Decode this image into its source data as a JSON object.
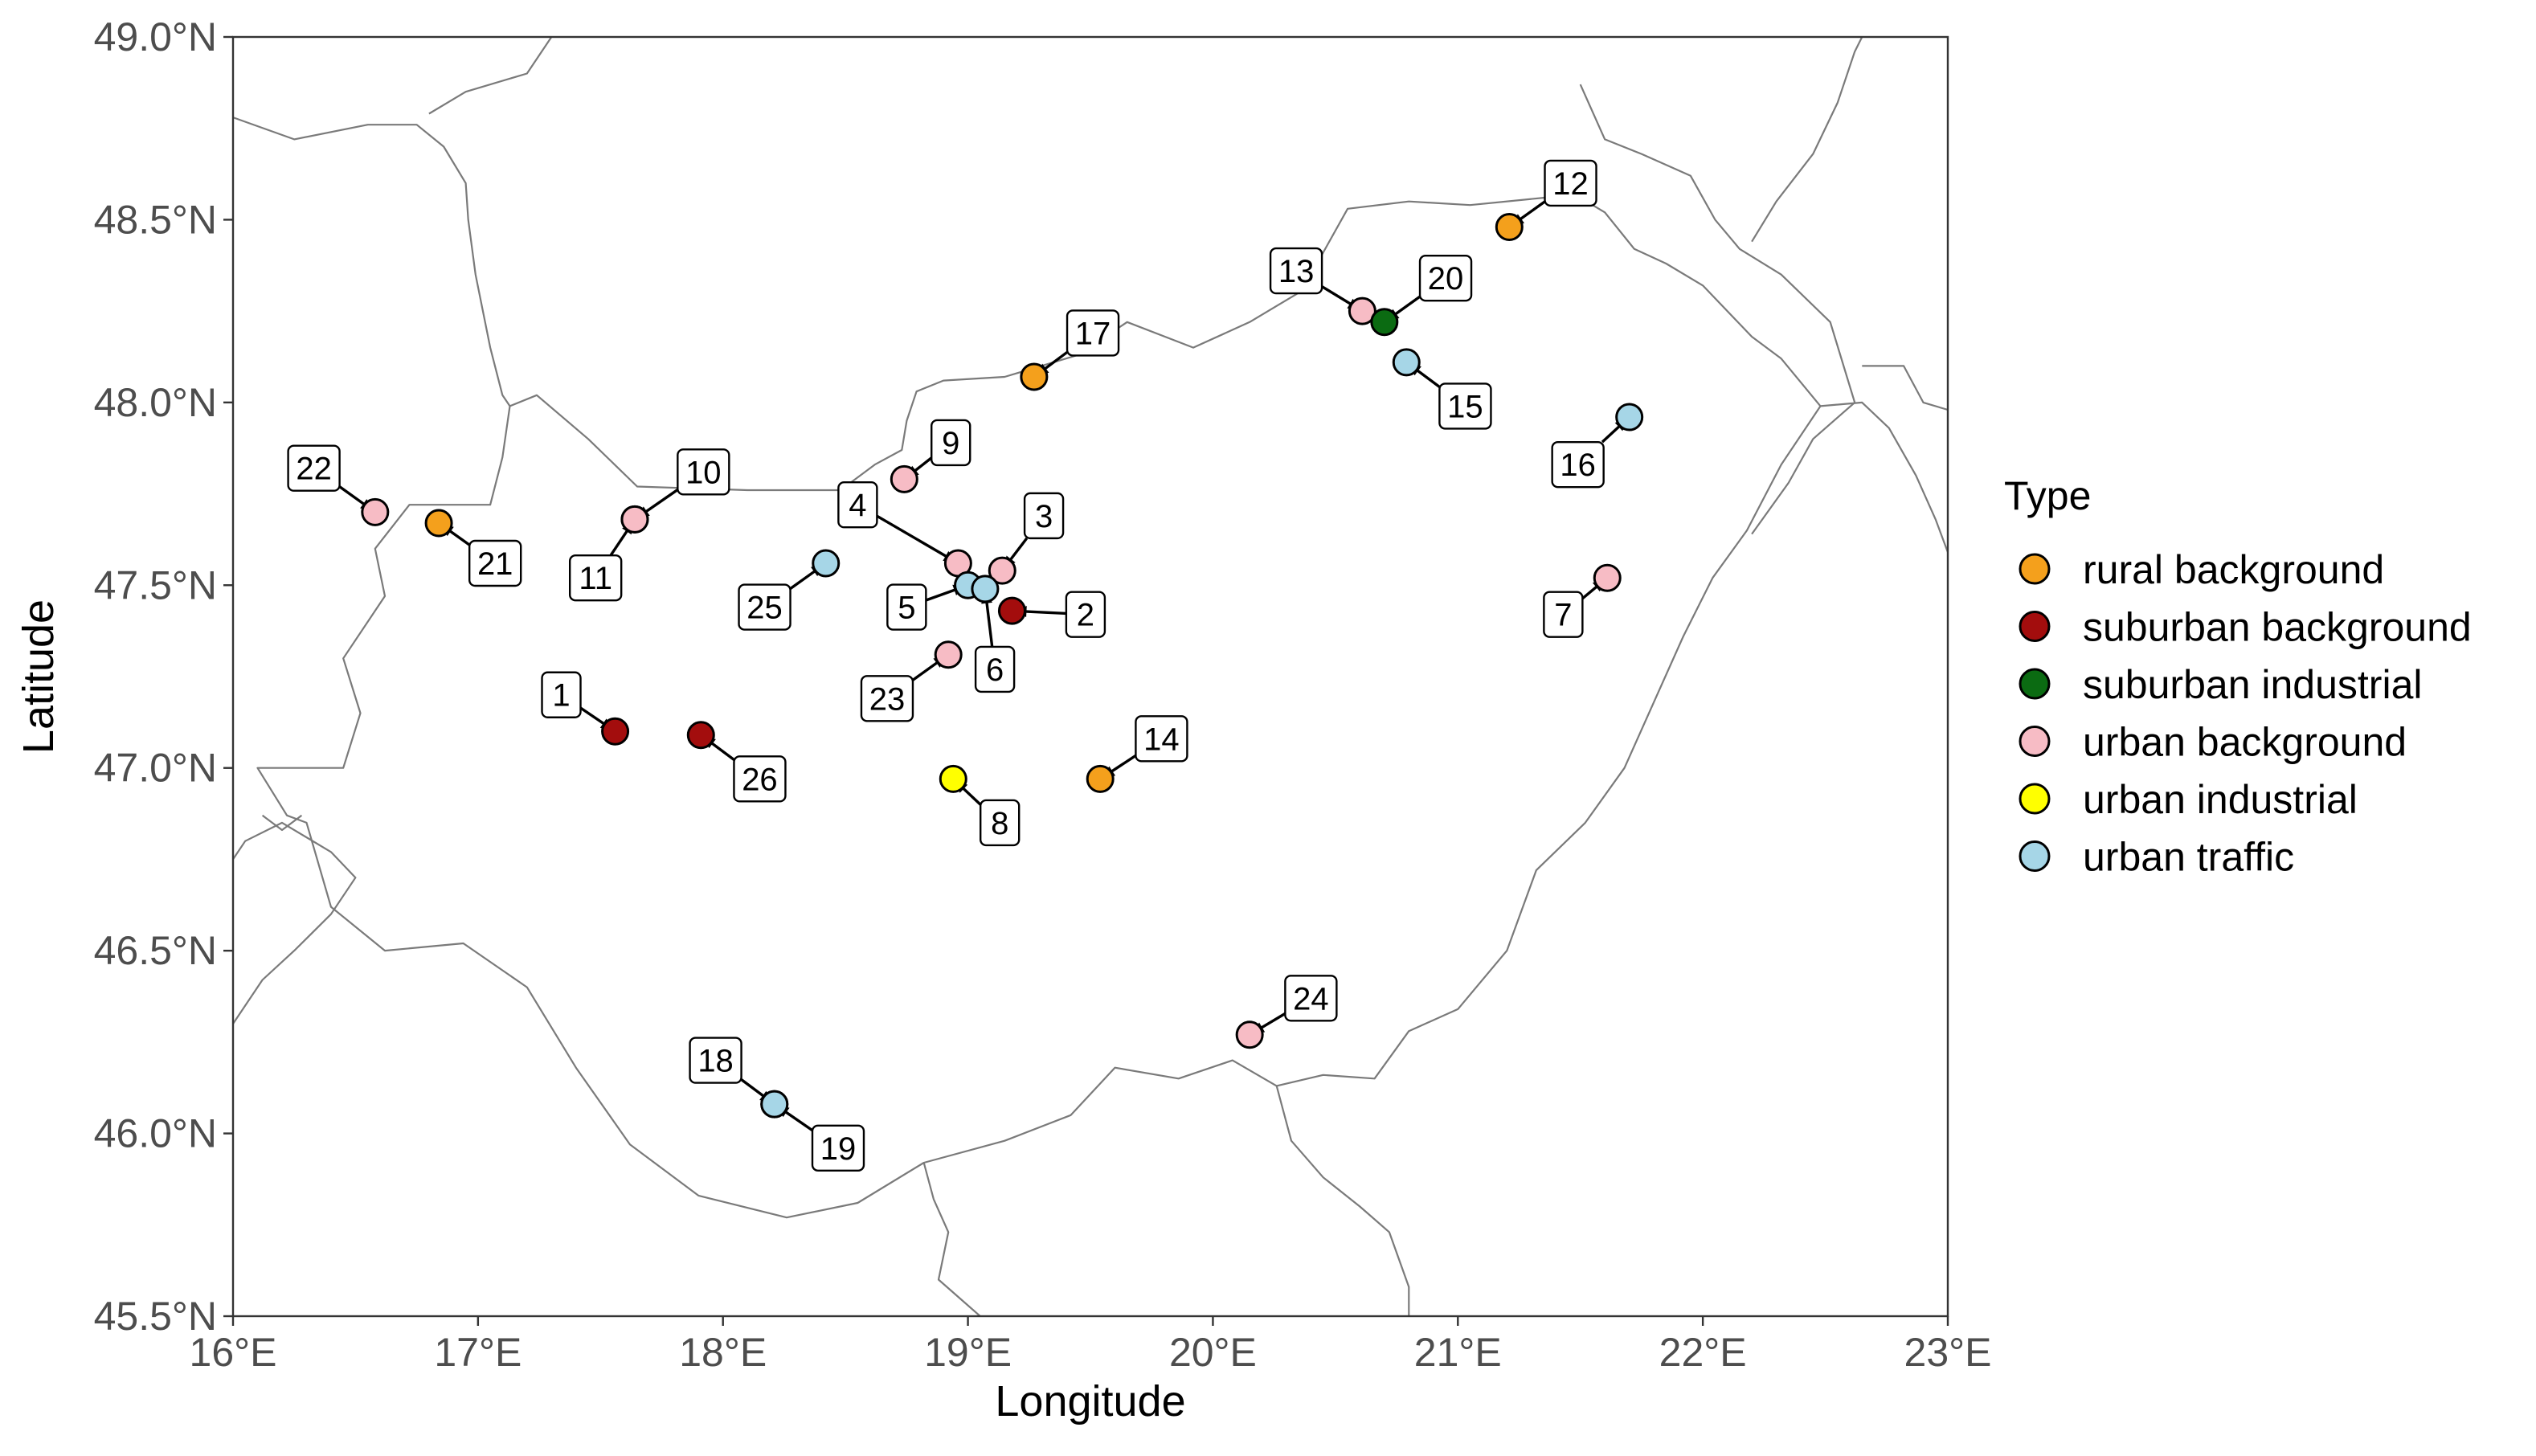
{
  "chart_data": {
    "type": "scatter",
    "xlabel": "Longitude",
    "ylabel": "Latitude",
    "xlim": [
      16,
      23
    ],
    "ylim": [
      45.5,
      49
    ],
    "x_ticks": [
      {
        "value": 16,
        "label": "16°E"
      },
      {
        "value": 17,
        "label": "17°E"
      },
      {
        "value": 18,
        "label": "18°E"
      },
      {
        "value": 19,
        "label": "19°E"
      },
      {
        "value": 20,
        "label": "20°E"
      },
      {
        "value": 21,
        "label": "21°E"
      },
      {
        "value": 22,
        "label": "22°E"
      },
      {
        "value": 23,
        "label": "23°E"
      }
    ],
    "y_ticks": [
      {
        "value": 45.5,
        "label": "45.5°N"
      },
      {
        "value": 46.0,
        "label": "46.0°N"
      },
      {
        "value": 46.5,
        "label": "46.5°N"
      },
      {
        "value": 47.0,
        "label": "47.0°N"
      },
      {
        "value": 47.5,
        "label": "47.5°N"
      },
      {
        "value": 48.0,
        "label": "48.0°N"
      },
      {
        "value": 48.5,
        "label": "48.5°N"
      },
      {
        "value": 49.0,
        "label": "49.0°N"
      }
    ],
    "legend_title": "Type",
    "legend_position": "right",
    "grid": false,
    "categories": [
      {
        "name": "rural background",
        "color": "#f4a01c"
      },
      {
        "name": "suburban background",
        "color": "#a30d0d"
      },
      {
        "name": "suburban industrial",
        "color": "#0b6b12"
      },
      {
        "name": "urban background",
        "color": "#f7bcc5"
      },
      {
        "name": "urban industrial",
        "color": "#ffff00"
      },
      {
        "name": "urban traffic",
        "color": "#a6d6e7"
      }
    ],
    "points": [
      {
        "id": "1",
        "lon": 17.56,
        "lat": 47.1,
        "type": "suburban background",
        "label_lon": 17.34,
        "label_lat": 47.2
      },
      {
        "id": "2",
        "lon": 19.18,
        "lat": 47.43,
        "type": "suburban background",
        "label_lon": 19.48,
        "label_lat": 47.42
      },
      {
        "id": "3",
        "lon": 19.14,
        "lat": 47.54,
        "type": "urban background",
        "label_lon": 19.31,
        "label_lat": 47.69
      },
      {
        "id": "4",
        "lon": 18.96,
        "lat": 47.56,
        "type": "urban background",
        "label_lon": 18.55,
        "label_lat": 47.72
      },
      {
        "id": "5",
        "lon": 19.0,
        "lat": 47.5,
        "type": "urban traffic",
        "label_lon": 18.75,
        "label_lat": 47.44
      },
      {
        "id": "6",
        "lon": 19.07,
        "lat": 47.49,
        "type": "urban traffic",
        "label_lon": 19.11,
        "label_lat": 47.27
      },
      {
        "id": "7",
        "lon": 21.61,
        "lat": 47.52,
        "type": "urban background",
        "label_lon": 21.43,
        "label_lat": 47.42
      },
      {
        "id": "8",
        "lon": 18.94,
        "lat": 46.97,
        "type": "urban industrial",
        "label_lon": 19.13,
        "label_lat": 46.85
      },
      {
        "id": "9",
        "lon": 18.74,
        "lat": 47.79,
        "type": "urban background",
        "label_lon": 18.93,
        "label_lat": 47.89
      },
      {
        "id": "10",
        "lon": 17.64,
        "lat": 47.68,
        "type": "urban background",
        "label_lon": 17.92,
        "label_lat": 47.81
      },
      {
        "id": "11",
        "lon": 17.64,
        "lat": 47.68,
        "type": "urban background",
        "label_lon": 17.48,
        "label_lat": 47.52
      },
      {
        "id": "12",
        "lon": 21.21,
        "lat": 48.48,
        "type": "rural background",
        "label_lon": 21.46,
        "label_lat": 48.6
      },
      {
        "id": "13",
        "lon": 20.61,
        "lat": 48.25,
        "type": "urban background",
        "label_lon": 20.34,
        "label_lat": 48.36
      },
      {
        "id": "14",
        "lon": 19.54,
        "lat": 46.97,
        "type": "rural background",
        "label_lon": 19.79,
        "label_lat": 47.08
      },
      {
        "id": "15",
        "lon": 20.79,
        "lat": 48.11,
        "type": "urban traffic",
        "label_lon": 21.03,
        "label_lat": 47.99
      },
      {
        "id": "16",
        "lon": 21.7,
        "lat": 47.96,
        "type": "urban traffic",
        "label_lon": 21.49,
        "label_lat": 47.83
      },
      {
        "id": "17",
        "lon": 19.27,
        "lat": 48.07,
        "type": "rural background",
        "label_lon": 19.51,
        "label_lat": 48.19
      },
      {
        "id": "18",
        "lon": 18.21,
        "lat": 46.08,
        "type": "urban traffic",
        "label_lon": 17.97,
        "label_lat": 46.2
      },
      {
        "id": "19",
        "lon": 18.21,
        "lat": 46.08,
        "type": "urban traffic",
        "label_lon": 18.47,
        "label_lat": 45.96
      },
      {
        "id": "20",
        "lon": 20.7,
        "lat": 48.22,
        "type": "suburban industrial",
        "label_lon": 20.95,
        "label_lat": 48.34
      },
      {
        "id": "21",
        "lon": 16.84,
        "lat": 47.67,
        "type": "rural background",
        "label_lon": 17.07,
        "label_lat": 47.56
      },
      {
        "id": "22",
        "lon": 16.58,
        "lat": 47.7,
        "type": "urban background",
        "label_lon": 16.33,
        "label_lat": 47.82
      },
      {
        "id": "23",
        "lon": 18.92,
        "lat": 47.31,
        "type": "urban background",
        "label_lon": 18.67,
        "label_lat": 47.19
      },
      {
        "id": "24",
        "lon": 20.15,
        "lat": 46.27,
        "type": "urban background",
        "label_lon": 20.4,
        "label_lat": 46.37
      },
      {
        "id": "25",
        "lon": 18.42,
        "lat": 47.56,
        "type": "urban traffic",
        "label_lon": 18.17,
        "label_lat": 47.44
      },
      {
        "id": "26",
        "lon": 17.91,
        "lat": 47.09,
        "type": "suburban background",
        "label_lon": 18.15,
        "label_lat": 46.97
      }
    ],
    "borders": [
      [
        [
          16.0,
          48.78
        ],
        [
          16.25,
          48.72
        ],
        [
          16.55,
          48.76
        ],
        [
          16.75,
          48.76
        ],
        [
          16.86,
          48.7
        ],
        [
          16.95,
          48.6
        ],
        [
          16.96,
          48.5
        ],
        [
          16.99,
          48.35
        ],
        [
          17.05,
          48.15
        ],
        [
          17.1,
          48.02
        ],
        [
          17.13,
          47.99
        ]
      ],
      [
        [
          17.13,
          47.99
        ],
        [
          17.24,
          48.02
        ],
        [
          17.45,
          47.9
        ],
        [
          17.65,
          47.77
        ],
        [
          18.1,
          47.76
        ],
        [
          18.48,
          47.76
        ],
        [
          18.62,
          47.83
        ],
        [
          18.73,
          47.87
        ],
        [
          18.75,
          47.95
        ],
        [
          18.79,
          48.03
        ],
        [
          18.9,
          48.06
        ],
        [
          19.15,
          48.07
        ],
        [
          19.45,
          48.13
        ],
        [
          19.65,
          48.22
        ],
        [
          19.92,
          48.15
        ],
        [
          20.15,
          48.22
        ],
        [
          20.35,
          48.3
        ],
        [
          20.45,
          48.41
        ],
        [
          20.55,
          48.53
        ],
        [
          20.8,
          48.55
        ],
        [
          21.05,
          48.54
        ],
        [
          21.35,
          48.56
        ],
        [
          21.45,
          48.58
        ],
        [
          21.6,
          48.52
        ],
        [
          21.72,
          48.42
        ],
        [
          21.85,
          48.38
        ],
        [
          22.0,
          48.32
        ],
        [
          22.1,
          48.25
        ],
        [
          22.2,
          48.18
        ],
        [
          22.32,
          48.12
        ],
        [
          22.48,
          47.99
        ],
        [
          22.65,
          48.0
        ],
        [
          22.76,
          47.93
        ],
        [
          22.87,
          47.8
        ],
        [
          22.95,
          47.68
        ],
        [
          23.0,
          47.59
        ]
      ],
      [
        [
          22.48,
          47.99
        ],
        [
          22.32,
          47.83
        ],
        [
          22.18,
          47.65
        ],
        [
          22.04,
          47.52
        ],
        [
          21.92,
          47.36
        ],
        [
          21.8,
          47.18
        ],
        [
          21.68,
          47.0
        ],
        [
          21.52,
          46.85
        ],
        [
          21.32,
          46.72
        ],
        [
          21.2,
          46.5
        ],
        [
          21.0,
          46.34
        ],
        [
          20.8,
          46.28
        ],
        [
          20.66,
          46.15
        ],
        [
          20.45,
          46.16
        ],
        [
          20.26,
          46.13
        ],
        [
          20.08,
          46.2
        ],
        [
          19.86,
          46.15
        ],
        [
          19.6,
          46.18
        ],
        [
          19.42,
          46.05
        ],
        [
          19.15,
          45.98
        ],
        [
          18.82,
          45.92
        ],
        [
          18.55,
          45.81
        ],
        [
          18.26,
          45.77
        ],
        [
          17.9,
          45.83
        ],
        [
          17.62,
          45.97
        ],
        [
          17.4,
          46.18
        ],
        [
          17.2,
          46.4
        ],
        [
          16.94,
          46.52
        ],
        [
          16.62,
          46.5
        ],
        [
          16.4,
          46.62
        ],
        [
          16.3,
          46.85
        ],
        [
          16.22,
          46.87
        ],
        [
          16.1,
          47.0
        ],
        [
          16.45,
          47.0
        ],
        [
          16.52,
          47.15
        ],
        [
          16.45,
          47.3
        ],
        [
          16.62,
          47.47
        ],
        [
          16.58,
          47.6
        ],
        [
          16.72,
          47.72
        ],
        [
          17.05,
          47.72
        ],
        [
          17.1,
          47.85
        ],
        [
          17.13,
          47.99
        ]
      ],
      [
        [
          16.12,
          46.87
        ],
        [
          16.2,
          46.83
        ],
        [
          16.28,
          46.87
        ]
      ],
      [
        [
          16.0,
          46.3
        ],
        [
          16.12,
          46.42
        ],
        [
          16.25,
          46.5
        ],
        [
          16.4,
          46.6
        ],
        [
          16.5,
          46.7
        ],
        [
          16.4,
          46.77
        ],
        [
          16.2,
          46.85
        ],
        [
          16.05,
          46.8
        ],
        [
          16.0,
          46.75
        ]
      ],
      [
        [
          18.82,
          45.92
        ],
        [
          18.86,
          45.82
        ],
        [
          18.92,
          45.73
        ],
        [
          18.88,
          45.6
        ],
        [
          19.05,
          45.5
        ]
      ],
      [
        [
          20.26,
          46.13
        ],
        [
          20.32,
          45.98
        ],
        [
          20.45,
          45.88
        ],
        [
          20.6,
          45.8
        ],
        [
          20.72,
          45.73
        ],
        [
          20.8,
          45.58
        ],
        [
          20.8,
          45.5
        ]
      ],
      [
        [
          17.3,
          49.0
        ],
        [
          17.2,
          48.9
        ],
        [
          16.95,
          48.85
        ],
        [
          16.8,
          48.79
        ]
      ],
      [
        [
          21.5,
          48.87
        ],
        [
          21.6,
          48.72
        ],
        [
          21.75,
          48.68
        ],
        [
          21.95,
          48.62
        ],
        [
          22.05,
          48.5
        ],
        [
          22.15,
          48.42
        ],
        [
          22.32,
          48.35
        ],
        [
          22.52,
          48.22
        ],
        [
          22.62,
          48.0
        ],
        [
          22.45,
          47.9
        ],
        [
          22.35,
          47.78
        ],
        [
          22.2,
          47.64
        ]
      ],
      [
        [
          22.2,
          48.44
        ],
        [
          22.3,
          48.55
        ],
        [
          22.45,
          48.68
        ],
        [
          22.55,
          48.82
        ],
        [
          22.62,
          48.96
        ],
        [
          22.65,
          49.0
        ]
      ],
      [
        [
          23.0,
          47.98
        ],
        [
          22.9,
          48.0
        ],
        [
          22.82,
          48.1
        ],
        [
          22.65,
          48.1
        ]
      ]
    ]
  }
}
